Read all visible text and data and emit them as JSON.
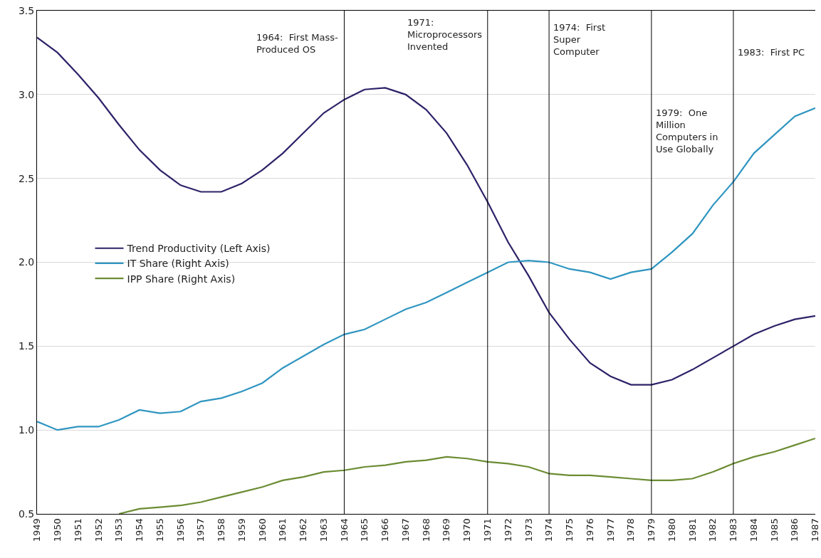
{
  "chart_data": {
    "type": "line",
    "x": [
      1949,
      1950,
      1951,
      1952,
      1953,
      1954,
      1955,
      1956,
      1957,
      1958,
      1959,
      1960,
      1961,
      1962,
      1963,
      1964,
      1965,
      1966,
      1967,
      1968,
      1969,
      1970,
      1971,
      1972,
      1973,
      1974,
      1975,
      1976,
      1977,
      1978,
      1979,
      1980,
      1981,
      1982,
      1983,
      1984,
      1985,
      1986,
      1987
    ],
    "series": [
      {
        "name": "Trend Productivity (Left Axis)",
        "color": "#2e2168",
        "values": [
          3.34,
          3.25,
          3.12,
          2.98,
          2.82,
          2.67,
          2.55,
          2.46,
          2.42,
          2.42,
          2.47,
          2.55,
          2.65,
          2.77,
          2.89,
          2.97,
          3.03,
          3.04,
          3.0,
          2.91,
          2.77,
          2.58,
          2.36,
          2.12,
          1.92,
          1.7,
          1.54,
          1.4,
          1.32,
          1.27,
          1.27,
          1.3,
          1.36,
          1.43,
          1.5,
          1.57,
          1.62,
          1.66,
          1.68
        ]
      },
      {
        "name": "IT Share (Right Axis)",
        "color": "#2f95c0",
        "values": [
          1.05,
          1.0,
          1.02,
          1.02,
          1.06,
          1.12,
          1.1,
          1.11,
          1.17,
          1.19,
          1.23,
          1.28,
          1.37,
          1.44,
          1.51,
          1.57,
          1.6,
          1.66,
          1.72,
          1.76,
          1.82,
          1.88,
          1.94,
          2.0,
          2.01,
          2.0,
          1.96,
          1.94,
          1.9,
          1.94,
          1.96,
          2.06,
          2.17,
          2.34,
          2.48,
          2.65,
          2.76,
          2.87,
          2.92
        ]
      },
      {
        "name": "IPP Share (Right Axis)",
        "color": "#6b8c33",
        "values": [
          null,
          null,
          null,
          null,
          0.5,
          0.53,
          0.54,
          0.55,
          0.57,
          0.6,
          0.63,
          0.66,
          0.7,
          0.72,
          0.75,
          0.76,
          0.78,
          0.79,
          0.81,
          0.82,
          0.84,
          0.83,
          0.81,
          0.8,
          0.78,
          0.74,
          0.73,
          0.73,
          0.72,
          0.71,
          0.7,
          0.7,
          0.71,
          0.75,
          0.8,
          0.84,
          0.87,
          0.91,
          0.95
        ]
      }
    ],
    "xlim": [
      1949,
      1987
    ],
    "xticks": [
      1949,
      1950,
      1951,
      1952,
      1953,
      1954,
      1955,
      1956,
      1957,
      1958,
      1959,
      1960,
      1961,
      1962,
      1963,
      1964,
      1965,
      1966,
      1967,
      1968,
      1969,
      1970,
      1971,
      1972,
      1973,
      1974,
      1975,
      1976,
      1977,
      1978,
      1979,
      1980,
      1981,
      1982,
      1983,
      1984,
      1985,
      1986,
      1987
    ],
    "ylim": [
      0.5,
      3.5
    ],
    "yticks": [
      {
        "value": 0.5,
        "label": "0.5"
      },
      {
        "value": 1,
        "label": "1.0"
      },
      {
        "value": 1.5,
        "label": "1.5"
      },
      {
        "value": 2,
        "label": "2.0"
      },
      {
        "value": 2.5,
        "label": "2.5"
      },
      {
        "value": 3,
        "label": "3.0"
      },
      {
        "value": 3.5,
        "label": "3.5"
      }
    ],
    "grid": "y",
    "legend": "left",
    "marker": "none",
    "line_style": "solid",
    "ref_lines": [
      {
        "axis": "x",
        "value": 1964,
        "label": "1964:  First Mass-\nProduced OS",
        "color": "#000000"
      },
      {
        "axis": "x",
        "value": 1971,
        "label": "1971:\nMicroprocessors\nInvented",
        "color": "#000000"
      },
      {
        "axis": "x",
        "value": 1974,
        "label": "1974:  First\nSuper\nComputer",
        "color": "#000000"
      },
      {
        "axis": "x",
        "value": 1979,
        "label": "1979:  One\nMillion\nComputers in\nUse Globally",
        "color": "#000000"
      },
      {
        "axis": "x",
        "value": 1983,
        "label": "1983:  First PC",
        "color": "#000000"
      }
    ]
  }
}
